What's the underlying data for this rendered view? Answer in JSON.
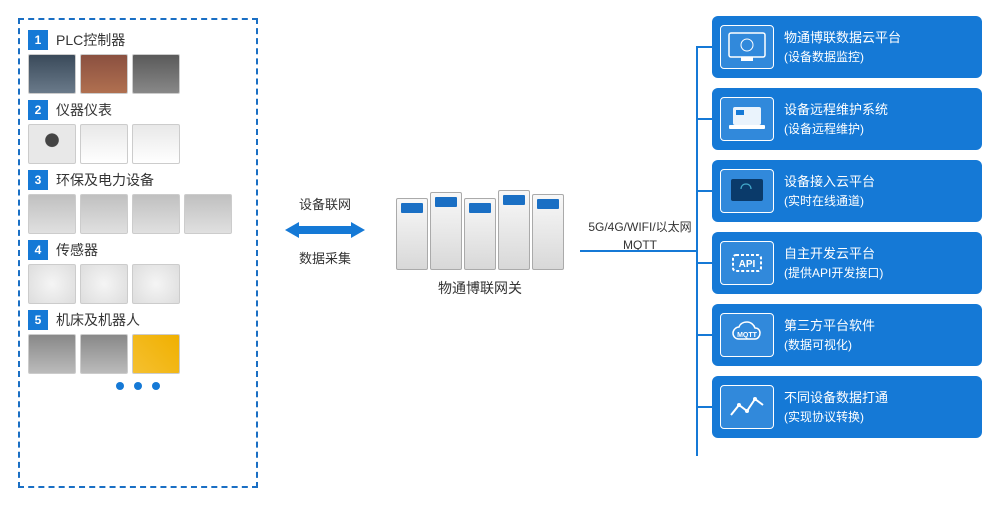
{
  "diagram": {
    "type": "network-architecture",
    "colors": {
      "primary": "#1579d6",
      "border_dashed": "#1a6fc4",
      "text": "#333333",
      "bg": "#ffffff"
    },
    "left_panel": {
      "categories": [
        {
          "num": "1",
          "title": "PLC控制器",
          "devices": [
            "plc1",
            "plc2",
            "plc3"
          ]
        },
        {
          "num": "2",
          "title": "仪器仪表",
          "devices": [
            "cam",
            "meter",
            "meter"
          ]
        },
        {
          "num": "3",
          "title": "环保及电力设备",
          "devices": [
            "env1",
            "env1",
            "env1",
            "env1"
          ]
        },
        {
          "num": "4",
          "title": "传感器",
          "devices": [
            "sensor",
            "sensor",
            "sensor"
          ]
        },
        {
          "num": "5",
          "title": "机床及机器人",
          "devices": [
            "cnc",
            "cnc",
            "robot"
          ]
        }
      ]
    },
    "arrow_labels": {
      "top": "设备联网",
      "bottom": "数据采集"
    },
    "gateway": {
      "label": "物通博联网关"
    },
    "network": {
      "line1": "5G/4G/WIFI/以太网",
      "line2": "MQTT"
    },
    "services": [
      {
        "icon": "dashboard",
        "title": "物通博联数据云平台",
        "sub": "(设备数据监控)"
      },
      {
        "icon": "laptop",
        "title": "设备远程维护系统",
        "sub": "(设备远程维护)"
      },
      {
        "icon": "cloud-screen",
        "title": "设备接入云平台",
        "sub": "(实时在线通道)"
      },
      {
        "icon": "api",
        "title": "自主开发云平台",
        "sub": "(提供API开发接口)"
      },
      {
        "icon": "mqtt",
        "title": "第三方平台软件",
        "sub": "(数据可视化)"
      },
      {
        "icon": "chart",
        "title": "不同设备数据打通",
        "sub": "(实现协议转换)"
      }
    ]
  }
}
